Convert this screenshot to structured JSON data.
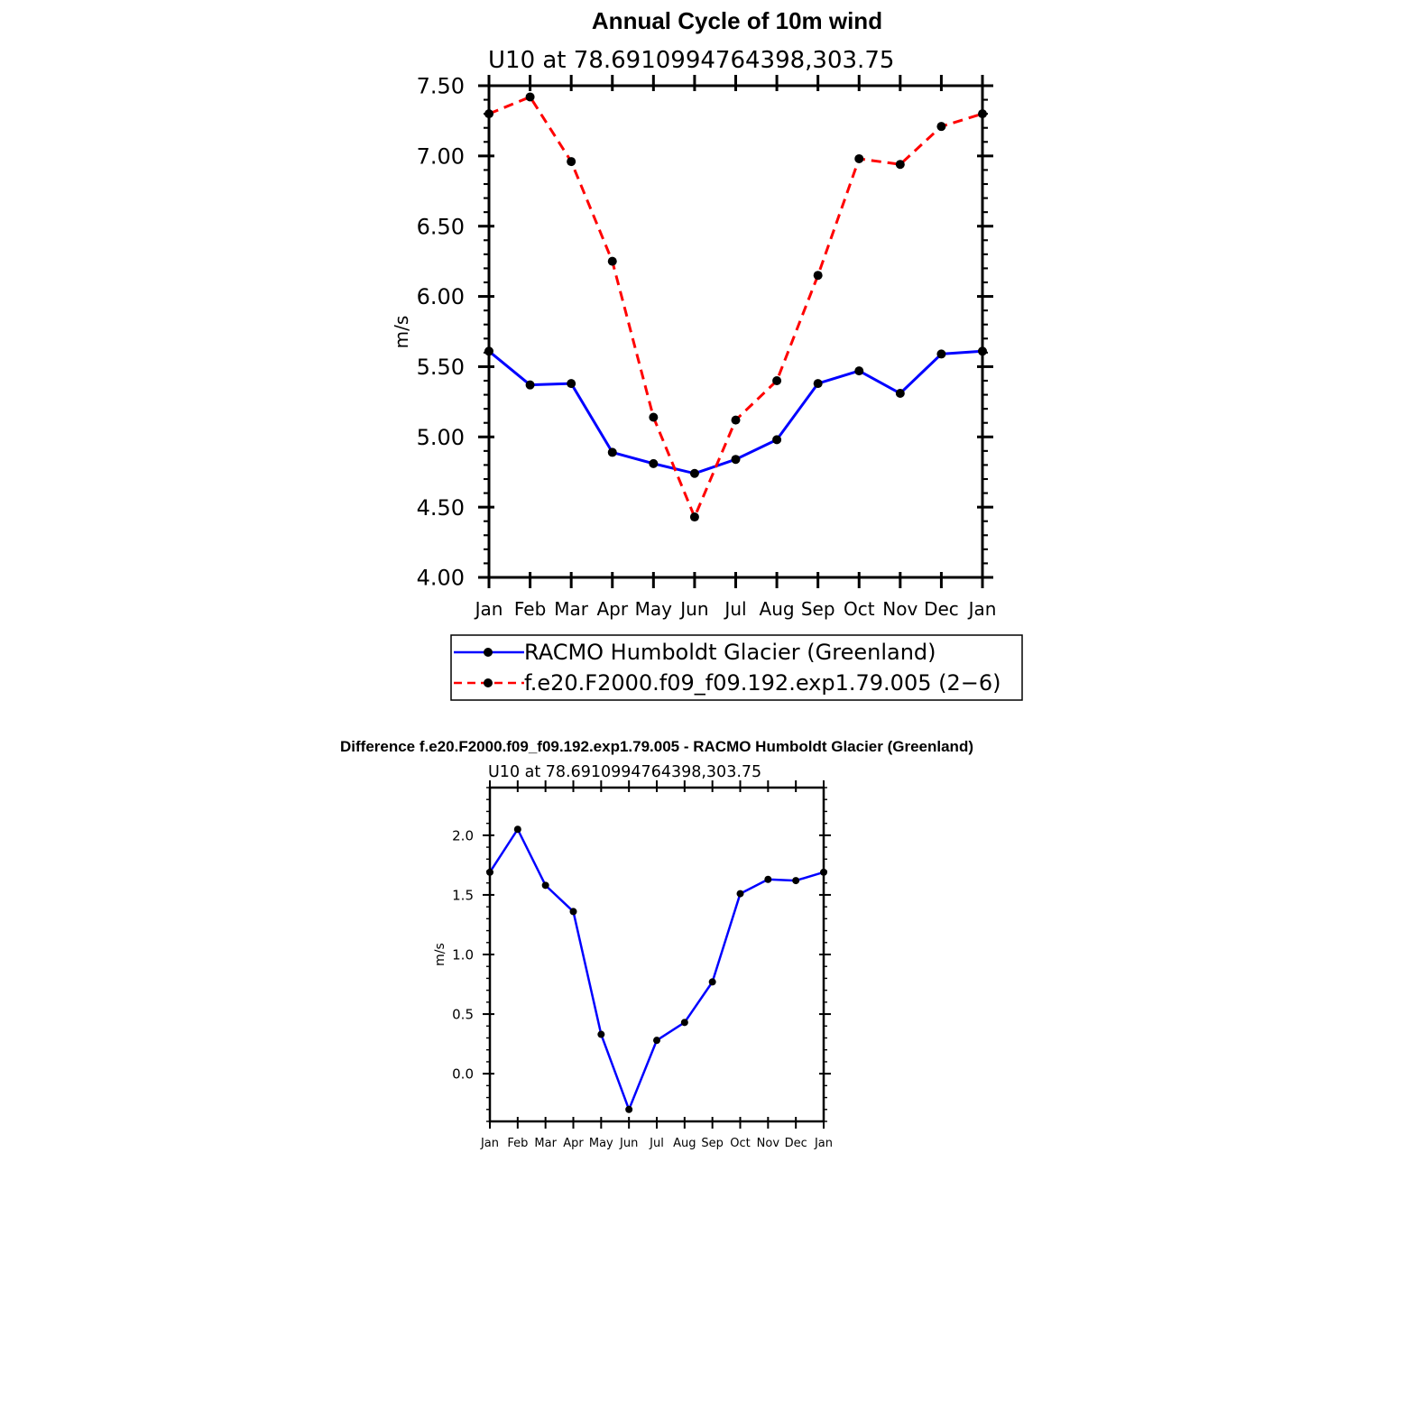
{
  "chart_data": [
    {
      "type": "line",
      "title": "Annual Cycle of 10m wind",
      "subtitle": "U10 at 78.6910994764398,303.75",
      "ylabel": "m/s",
      "xlabel": "",
      "categories": [
        "Jan",
        "Feb",
        "Mar",
        "Apr",
        "May",
        "Jun",
        "Jul",
        "Aug",
        "Sep",
        "Oct",
        "Nov",
        "Dec",
        "Jan"
      ],
      "ylim": [
        4.0,
        7.5
      ],
      "yticks": [
        "4.00",
        "4.50",
        "5.00",
        "5.50",
        "6.00",
        "6.50",
        "7.00",
        "7.50"
      ],
      "grid": false,
      "legend_position": "bottom",
      "series": [
        {
          "name": "RACMO Humboldt Glacier (Greenland)",
          "color": "#0000ff",
          "dash": "solid",
          "values": [
            5.61,
            5.37,
            5.38,
            4.89,
            4.81,
            4.74,
            4.84,
            4.98,
            5.38,
            5.47,
            5.31,
            5.59,
            5.61
          ]
        },
        {
          "name": "f.e20.F2000.f09_f09.192.exp1.79.005 (2−6)",
          "color": "#ff0000",
          "dash": "dashed",
          "values": [
            7.3,
            7.42,
            6.96,
            6.25,
            5.14,
            4.43,
            5.12,
            5.4,
            6.15,
            6.98,
            6.94,
            7.21,
            7.3
          ]
        }
      ]
    },
    {
      "type": "line",
      "title": "Difference f.e20.F2000.f09_f09.192.exp1.79.005 - RACMO Humboldt Glacier (Greenland)",
      "subtitle": "U10 at 78.6910994764398,303.75",
      "ylabel": "m/s",
      "xlabel": "",
      "categories": [
        "Jan",
        "Feb",
        "Mar",
        "Apr",
        "May",
        "Jun",
        "Jul",
        "Aug",
        "Sep",
        "Oct",
        "Nov",
        "Dec",
        "Jan"
      ],
      "ylim": [
        -0.4,
        2.4
      ],
      "yticks": [
        "0.0",
        "0.5",
        "1.0",
        "1.5",
        "2.0"
      ],
      "grid": false,
      "series": [
        {
          "color": "#0000ff",
          "dash": "solid",
          "values": [
            1.69,
            2.05,
            1.58,
            1.36,
            0.33,
            -0.3,
            0.28,
            0.43,
            0.77,
            1.51,
            1.63,
            1.62,
            1.69
          ]
        }
      ]
    }
  ]
}
